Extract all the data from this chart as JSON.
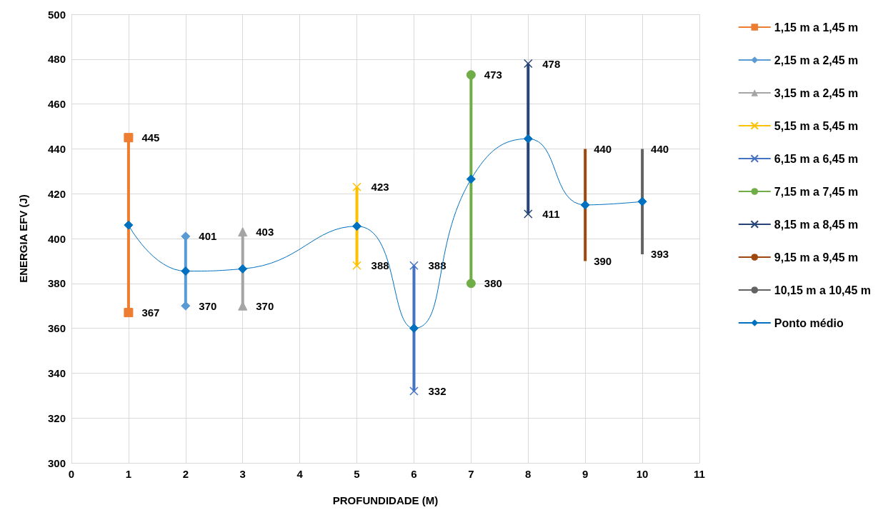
{
  "chart_data": {
    "type": "line",
    "xlabel": "PROFUNDIDADE (M)",
    "ylabel": "ENERGIA EFV (J)",
    "xlim": [
      0,
      11
    ],
    "xticks": [
      0,
      1,
      2,
      3,
      4,
      5,
      6,
      7,
      8,
      9,
      10,
      11
    ],
    "ylim": [
      300,
      500
    ],
    "yticks": [
      300,
      320,
      340,
      360,
      380,
      400,
      420,
      440,
      460,
      480,
      500
    ],
    "grid": true,
    "legend": "right",
    "data_labels": true,
    "series": [
      {
        "name": "1,15 m a 1,45 m",
        "color": "#ed7d31",
        "marker": "square",
        "x": [
          1,
          1
        ],
        "values": [
          445,
          367
        ]
      },
      {
        "name": "2,15 m a 2,45 m",
        "color": "#5b9bd5",
        "marker": "diamond",
        "x": [
          2,
          2
        ],
        "values": [
          401,
          370
        ]
      },
      {
        "name": "3,15 m a 2,45 m",
        "color": "#a5a5a5",
        "marker": "triangle",
        "x": [
          3,
          3
        ],
        "values": [
          403,
          370
        ]
      },
      {
        "name": "5,15 m a 5,45 m",
        "color": "#ffc000",
        "marker": "cross",
        "x": [
          5,
          5
        ],
        "values": [
          423,
          388
        ]
      },
      {
        "name": "6,15 m a 6,45 m",
        "color": "#4472c4",
        "marker": "cross",
        "x": [
          6,
          6
        ],
        "values": [
          388,
          332
        ]
      },
      {
        "name": "7,15 m a 7,45 m",
        "color": "#70ad47",
        "marker": "circle",
        "x": [
          7,
          7
        ],
        "values": [
          473,
          380
        ]
      },
      {
        "name": "8,15 m a 8,45 m",
        "color": "#264478",
        "marker": "cross",
        "x": [
          8,
          8
        ],
        "values": [
          478,
          411
        ]
      },
      {
        "name": "9,15 m a 9,45 m",
        "color": "#9e480e",
        "marker": "none",
        "x": [
          9,
          9
        ],
        "values": [
          440,
          390
        ]
      },
      {
        "name": "10,15 m a 10,45 m",
        "color": "#636363",
        "marker": "none",
        "x": [
          10,
          10
        ],
        "values": [
          440,
          393
        ]
      },
      {
        "name": "Ponto médio",
        "color": "#0070c0",
        "marker": "diamond",
        "data_labels": false,
        "x": [
          1,
          2,
          3,
          5,
          6,
          7,
          8,
          9,
          10
        ],
        "values": [
          406,
          385.5,
          386.5,
          405.5,
          360,
          426.5,
          444.5,
          415,
          416.5
        ]
      }
    ]
  }
}
